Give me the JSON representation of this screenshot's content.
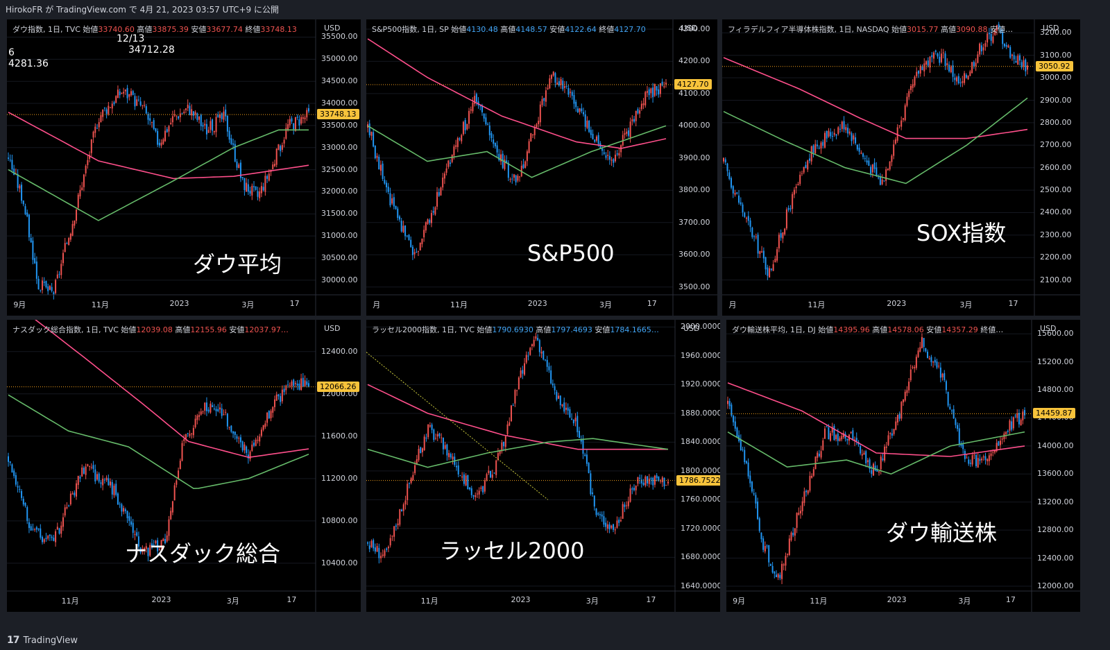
{
  "header": {
    "text": "HirokoFR が TradingView.com で 4月 21, 2023 03:57 UTC+9 に公開"
  },
  "footer": {
    "logo": "TradingView"
  },
  "colors": {
    "up": "#ef5350",
    "down": "#2196f3",
    "ma_pink": "#ff4f8b",
    "ma_green": "#66bb6a",
    "tag": "#f7c33b",
    "bg": "#000000"
  },
  "charts": [
    {
      "id": "dow",
      "title": "ダウ指数, 1日, TVC",
      "ohlc": [
        [
          "始値",
          "33740.60"
        ],
        [
          "高値",
          "33875.39"
        ],
        [
          "安値",
          "33677.74"
        ],
        [
          "終値",
          "33748.13"
        ]
      ],
      "title_color": "red",
      "overlay_lines": [
        "12/13",
        "34712.28",
        "6",
        "4281.36"
      ],
      "big_label": "ダウ平均",
      "currency": "USD",
      "last_price": "33748.13",
      "yticks": [
        "35500.00",
        "35000.00",
        "34500.00",
        "34000.00",
        "33500.00",
        "33000.00",
        "32500.00",
        "32000.00",
        "31500.00",
        "31000.00",
        "30500.00",
        "30000.00"
      ],
      "xticks": [
        "9月",
        "11月",
        "2023",
        "3月",
        "17"
      ]
    },
    {
      "id": "spx",
      "title": "S&P500指数, 1日, SP",
      "ohlc": [
        [
          "始値",
          "4130.48"
        ],
        [
          "高値",
          "4148.57"
        ],
        [
          "安値",
          "4122.64"
        ],
        [
          "終値",
          "4127.70"
        ]
      ],
      "title_color": "blue",
      "overlay_lines": [],
      "big_label": "S&P500",
      "currency": "USD",
      "last_price": "4127.70",
      "yticks": [
        "4300.00",
        "4200.00",
        "4100.00",
        "4000.00",
        "3900.00",
        "3800.00",
        "3700.00",
        "3600.00",
        "3500.00"
      ],
      "xticks": [
        "月",
        "11月",
        "2023",
        "3月",
        "17"
      ]
    },
    {
      "id": "sox",
      "title": "フィラデルフィア半導体株指数, 1日, NASDAQ",
      "ohlc": [
        [
          "始値",
          "3015.77"
        ],
        [
          "高値",
          "3090.88"
        ],
        [
          "安値…",
          ""
        ]
      ],
      "title_color": "red",
      "overlay_lines": [],
      "big_label": "SOX指数",
      "currency": "USD",
      "last_price": "3050.92",
      "yticks": [
        "3200.00",
        "3100.00",
        "3000.00",
        "2900.00",
        "2800.00",
        "2700.00",
        "2600.00",
        "2500.00",
        "2400.00",
        "2300.00",
        "2200.00",
        "2100.00"
      ],
      "xticks": [
        "月",
        "11月",
        "2023",
        "3月",
        "17"
      ]
    },
    {
      "id": "ndx",
      "title": "ナスダック総合指数, 1日, TVC",
      "ohlc": [
        [
          "始値",
          "12039.08"
        ],
        [
          "高値",
          "12155.96"
        ],
        [
          "安値",
          "12037.97…"
        ]
      ],
      "title_color": "red",
      "overlay_lines": [],
      "big_label": "ナスダック総合",
      "currency": "USD",
      "last_price": "12066.26",
      "yticks": [
        "12400.00",
        "12000.00",
        "11600.00",
        "11200.00",
        "10800.00",
        "10400.00"
      ],
      "xticks": [
        "11月",
        "2023",
        "3月",
        "17"
      ]
    },
    {
      "id": "rut",
      "title": "ラッセル2000指数, 1日, TVC",
      "ohlc": [
        [
          "始値",
          "1790.6930"
        ],
        [
          "高値",
          "1797.4693"
        ],
        [
          "安値",
          "1784.1665…"
        ]
      ],
      "title_color": "blue",
      "overlay_lines": [],
      "big_label": "ラッセル2000",
      "currency": "USD",
      "last_price": "1786.7522",
      "yticks": [
        "2000.0000",
        "1960.0000",
        "1920.0000",
        "1880.0000",
        "1840.0000",
        "1800.0000",
        "1760.0000",
        "1720.0000",
        "1680.0000",
        "1640.0000"
      ],
      "xticks": [
        "11月",
        "2023",
        "3月",
        "17"
      ]
    },
    {
      "id": "dja",
      "title": "ダウ輸送株平均, 1日, DJ",
      "ohlc": [
        [
          "始値",
          "14395.96"
        ],
        [
          "高値",
          "14578.06"
        ],
        [
          "安値",
          "14357.29"
        ],
        [
          "終値…",
          ""
        ]
      ],
      "title_color": "red",
      "overlay_lines": [],
      "big_label": "ダウ輸送株",
      "currency": "USD",
      "last_price": "14459.87",
      "yticks": [
        "15600.00",
        "15200.00",
        "14800.00",
        "14400.00",
        "14000.00",
        "13600.00",
        "13200.00",
        "12800.00",
        "12400.00",
        "12000.00"
      ],
      "xticks": [
        "9月",
        "11月",
        "2023",
        "3月",
        "17"
      ]
    }
  ],
  "chart_data": [
    {
      "type": "candlestick",
      "title": "ダウ指数, 1日, TVC",
      "ylim": [
        29700,
        35900
      ],
      "last": 33748.13,
      "path": [
        [
          0,
          32800
        ],
        [
          0.05,
          31800
        ],
        [
          0.1,
          29900
        ],
        [
          0.15,
          29700
        ],
        [
          0.22,
          31500
        ],
        [
          0.3,
          33700
        ],
        [
          0.38,
          34300
        ],
        [
          0.45,
          33900
        ],
        [
          0.5,
          33100
        ],
        [
          0.55,
          33700
        ],
        [
          0.6,
          33900
        ],
        [
          0.66,
          33400
        ],
        [
          0.72,
          33700
        ],
        [
          0.78,
          32200
        ],
        [
          0.83,
          31900
        ],
        [
          0.88,
          32600
        ],
        [
          0.93,
          33500
        ],
        [
          1,
          33748
        ]
      ],
      "ma_pink": [
        [
          0,
          33800
        ],
        [
          0.3,
          32700
        ],
        [
          0.55,
          32300
        ],
        [
          0.75,
          32350
        ],
        [
          1,
          32600
        ]
      ],
      "ma_green": [
        [
          0,
          32500
        ],
        [
          0.3,
          31350
        ],
        [
          0.55,
          32250
        ],
        [
          0.75,
          33000
        ],
        [
          0.9,
          33400
        ],
        [
          1,
          33400
        ]
      ]
    },
    {
      "type": "candlestick",
      "title": "S&P500指数, 1日, SP",
      "ylim": [
        3480,
        4330
      ],
      "last": 4127.7,
      "path": [
        [
          0,
          4000
        ],
        [
          0.07,
          3780
        ],
        [
          0.16,
          3600
        ],
        [
          0.2,
          3700
        ],
        [
          0.28,
          3900
        ],
        [
          0.36,
          4080
        ],
        [
          0.44,
          3900
        ],
        [
          0.5,
          3820
        ],
        [
          0.56,
          4000
        ],
        [
          0.62,
          4160
        ],
        [
          0.7,
          4060
        ],
        [
          0.75,
          3980
        ],
        [
          0.82,
          3880
        ],
        [
          0.88,
          4000
        ],
        [
          0.94,
          4100
        ],
        [
          1,
          4127
        ]
      ],
      "ma_pink": [
        [
          0,
          4270
        ],
        [
          0.2,
          4150
        ],
        [
          0.45,
          4030
        ],
        [
          0.7,
          3950
        ],
        [
          0.85,
          3930
        ],
        [
          1,
          3960
        ]
      ],
      "ma_green": [
        [
          0,
          4000
        ],
        [
          0.2,
          3890
        ],
        [
          0.4,
          3920
        ],
        [
          0.55,
          3840
        ],
        [
          0.75,
          3920
        ],
        [
          1,
          4000
        ]
      ]
    },
    {
      "type": "candlestick",
      "title": "フィラデルフィア半導体株指数, 1日, NASDAQ",
      "ylim": [
        2040,
        3260
      ],
      "last": 3050.92,
      "path": [
        [
          0,
          2620
        ],
        [
          0.08,
          2350
        ],
        [
          0.15,
          2130
        ],
        [
          0.22,
          2440
        ],
        [
          0.3,
          2700
        ],
        [
          0.4,
          2800
        ],
        [
          0.46,
          2650
        ],
        [
          0.52,
          2530
        ],
        [
          0.58,
          2800
        ],
        [
          0.65,
          3060
        ],
        [
          0.72,
          3100
        ],
        [
          0.78,
          2960
        ],
        [
          0.85,
          3150
        ],
        [
          0.9,
          3220
        ],
        [
          0.95,
          3100
        ],
        [
          1,
          3050
        ]
      ],
      "ma_pink": [
        [
          0,
          3090
        ],
        [
          0.25,
          2950
        ],
        [
          0.45,
          2820
        ],
        [
          0.6,
          2730
        ],
        [
          0.8,
          2730
        ],
        [
          1,
          2770
        ]
      ],
      "ma_green": [
        [
          0,
          2850
        ],
        [
          0.2,
          2720
        ],
        [
          0.4,
          2600
        ],
        [
          0.6,
          2530
        ],
        [
          0.8,
          2700
        ],
        [
          1,
          2910
        ]
      ]
    },
    {
      "type": "candlestick",
      "title": "ナスダック総合指数, 1日, TVC",
      "ylim": [
        10150,
        12700
      ],
      "last": 12066.26,
      "path": [
        [
          0,
          11400
        ],
        [
          0.08,
          10700
        ],
        [
          0.15,
          10600
        ],
        [
          0.25,
          11300
        ],
        [
          0.35,
          11100
        ],
        [
          0.45,
          10500
        ],
        [
          0.52,
          10600
        ],
        [
          0.58,
          11500
        ],
        [
          0.65,
          11900
        ],
        [
          0.72,
          11800
        ],
        [
          0.8,
          11400
        ],
        [
          0.88,
          11900
        ],
        [
          0.95,
          12100
        ],
        [
          1,
          12066
        ]
      ],
      "ma_pink": [
        [
          0,
          12900
        ],
        [
          0.25,
          12350
        ],
        [
          0.45,
          11900
        ],
        [
          0.6,
          11550
        ],
        [
          0.8,
          11400
        ],
        [
          1,
          11480
        ]
      ],
      "ma_green": [
        [
          0,
          11990
        ],
        [
          0.2,
          11650
        ],
        [
          0.4,
          11500
        ],
        [
          0.62,
          11100
        ],
        [
          0.8,
          11200
        ],
        [
          1,
          11430
        ]
      ]
    },
    {
      "type": "candlestick",
      "title": "ラッセル2000指数, 1日, TVC",
      "ylim": [
        1635,
        2010
      ],
      "last": 1786.7522,
      "path": [
        [
          0,
          1700
        ],
        [
          0.06,
          1680
        ],
        [
          0.12,
          1760
        ],
        [
          0.2,
          1860
        ],
        [
          0.28,
          1820
        ],
        [
          0.36,
          1760
        ],
        [
          0.44,
          1820
        ],
        [
          0.5,
          1920
        ],
        [
          0.56,
          1990
        ],
        [
          0.63,
          1900
        ],
        [
          0.7,
          1860
        ],
        [
          0.76,
          1740
        ],
        [
          0.82,
          1720
        ],
        [
          0.9,
          1790
        ],
        [
          1,
          1786
        ]
      ],
      "ma_pink": [
        [
          0,
          1920
        ],
        [
          0.2,
          1880
        ],
        [
          0.45,
          1850
        ],
        [
          0.7,
          1830
        ],
        [
          1,
          1830
        ]
      ],
      "ma_green": [
        [
          0,
          1830
        ],
        [
          0.2,
          1805
        ],
        [
          0.4,
          1825
        ],
        [
          0.6,
          1840
        ],
        [
          0.75,
          1845
        ],
        [
          1,
          1830
        ]
      ]
    },
    {
      "type": "candlestick",
      "title": "ダウ輸送株平均, 1日, DJ",
      "ylim": [
        11950,
        15800
      ],
      "last": 14459.87,
      "path": [
        [
          0,
          14600
        ],
        [
          0.06,
          13800
        ],
        [
          0.12,
          12600
        ],
        [
          0.17,
          12100
        ],
        [
          0.25,
          13200
        ],
        [
          0.33,
          14200
        ],
        [
          0.42,
          14100
        ],
        [
          0.5,
          13600
        ],
        [
          0.58,
          14500
        ],
        [
          0.65,
          15500
        ],
        [
          0.72,
          15000
        ],
        [
          0.8,
          13800
        ],
        [
          0.88,
          13800
        ],
        [
          0.95,
          14300
        ],
        [
          1,
          14460
        ]
      ],
      "ma_pink": [
        [
          0,
          14900
        ],
        [
          0.25,
          14500
        ],
        [
          0.5,
          13900
        ],
        [
          0.75,
          13850
        ],
        [
          1,
          14000
        ]
      ],
      "ma_green": [
        [
          0,
          14200
        ],
        [
          0.2,
          13700
        ],
        [
          0.4,
          13800
        ],
        [
          0.55,
          13600
        ],
        [
          0.75,
          14000
        ],
        [
          1,
          14200
        ]
      ]
    }
  ]
}
